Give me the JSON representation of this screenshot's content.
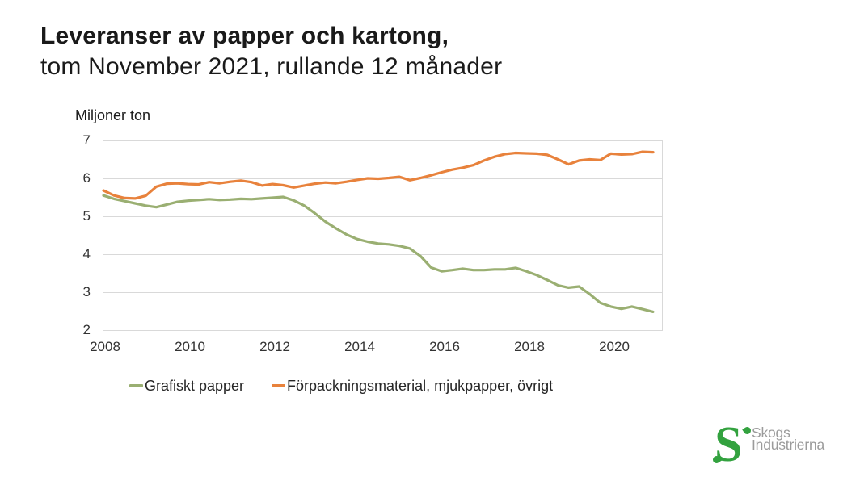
{
  "title": {
    "line1": "Leveranser av papper och kartong,",
    "line2": "tom November 2021, rullande 12 månader"
  },
  "chart": {
    "axis_title": "Miljoner ton",
    "y_ticks": [
      7,
      6,
      5,
      4,
      3,
      2
    ],
    "x_ticks": [
      "2008",
      "2010",
      "2012",
      "2014",
      "2016",
      "2018",
      "2020"
    ]
  },
  "chart_data": {
    "type": "line",
    "title": "Leveranser av papper och kartong, tom November 2021, rullande 12 månader",
    "ylabel": "Miljoner ton",
    "ylim": [
      2,
      7
    ],
    "grid": "horizontal",
    "legend_position": "bottom",
    "x_start": "2008-01",
    "x_end": "2021-11",
    "x": [
      2008.0,
      2008.27,
      2008.54,
      2008.8,
      2009.07,
      2009.34,
      2009.61,
      2009.87,
      2010.14,
      2010.41,
      2010.68,
      2010.94,
      2011.21,
      2011.48,
      2011.75,
      2012.01,
      2012.28,
      2012.55,
      2012.82,
      2013.08,
      2013.35,
      2013.62,
      2013.89,
      2014.15,
      2014.42,
      2014.69,
      2014.96,
      2015.22,
      2015.49,
      2015.76,
      2016.03,
      2016.29,
      2016.56,
      2016.83,
      2017.1,
      2017.36,
      2017.63,
      2017.9,
      2018.17,
      2018.43,
      2018.7,
      2018.97,
      2019.24,
      2019.5,
      2019.77,
      2020.04,
      2020.31,
      2020.57,
      2020.84,
      2021.11,
      2021.38,
      2021.64,
      2021.91
    ],
    "series": [
      {
        "name": "Grafiskt papper",
        "color": "#9aaf72",
        "values": [
          5.55,
          5.46,
          5.4,
          5.34,
          5.28,
          5.24,
          5.31,
          5.38,
          5.41,
          5.43,
          5.45,
          5.43,
          5.44,
          5.46,
          5.45,
          5.47,
          5.49,
          5.51,
          5.42,
          5.28,
          5.08,
          4.86,
          4.68,
          4.52,
          4.4,
          4.33,
          4.28,
          4.26,
          4.22,
          4.15,
          3.95,
          3.65,
          3.55,
          3.58,
          3.62,
          3.58,
          3.58,
          3.6,
          3.6,
          3.64,
          3.55,
          3.45,
          3.32,
          3.18,
          3.12,
          3.15,
          2.95,
          2.72,
          2.62,
          2.56,
          2.62,
          2.55,
          2.48
        ]
      },
      {
        "name": "Förpackningsmaterial, mjukpapper, övrigt",
        "color": "#e8823c",
        "values": [
          5.68,
          5.55,
          5.48,
          5.47,
          5.54,
          5.78,
          5.86,
          5.87,
          5.85,
          5.84,
          5.9,
          5.87,
          5.91,
          5.94,
          5.9,
          5.81,
          5.85,
          5.82,
          5.76,
          5.81,
          5.86,
          5.89,
          5.87,
          5.91,
          5.96,
          6.0,
          5.99,
          6.01,
          6.04,
          5.95,
          6.01,
          6.08,
          6.16,
          6.23,
          6.28,
          6.35,
          6.47,
          6.57,
          6.64,
          6.67,
          6.66,
          6.65,
          6.62,
          6.5,
          6.37,
          6.47,
          6.5,
          6.48,
          6.65,
          6.63,
          6.64,
          6.7,
          6.69
        ]
      }
    ]
  },
  "legend": {
    "items": [
      {
        "label": "Grafiskt papper"
      },
      {
        "label": "Förpackningsmaterial, mjukpapper, övrigt"
      }
    ]
  },
  "logo": {
    "mark": "S",
    "line1": "Skogs",
    "line2": "Industrierna",
    "green": "#33a23f",
    "gray": "#9b9b9b"
  },
  "colors": {
    "gridline": "#d9d9d9",
    "title_text": "#1a1a1a",
    "tick_text": "#333333"
  }
}
